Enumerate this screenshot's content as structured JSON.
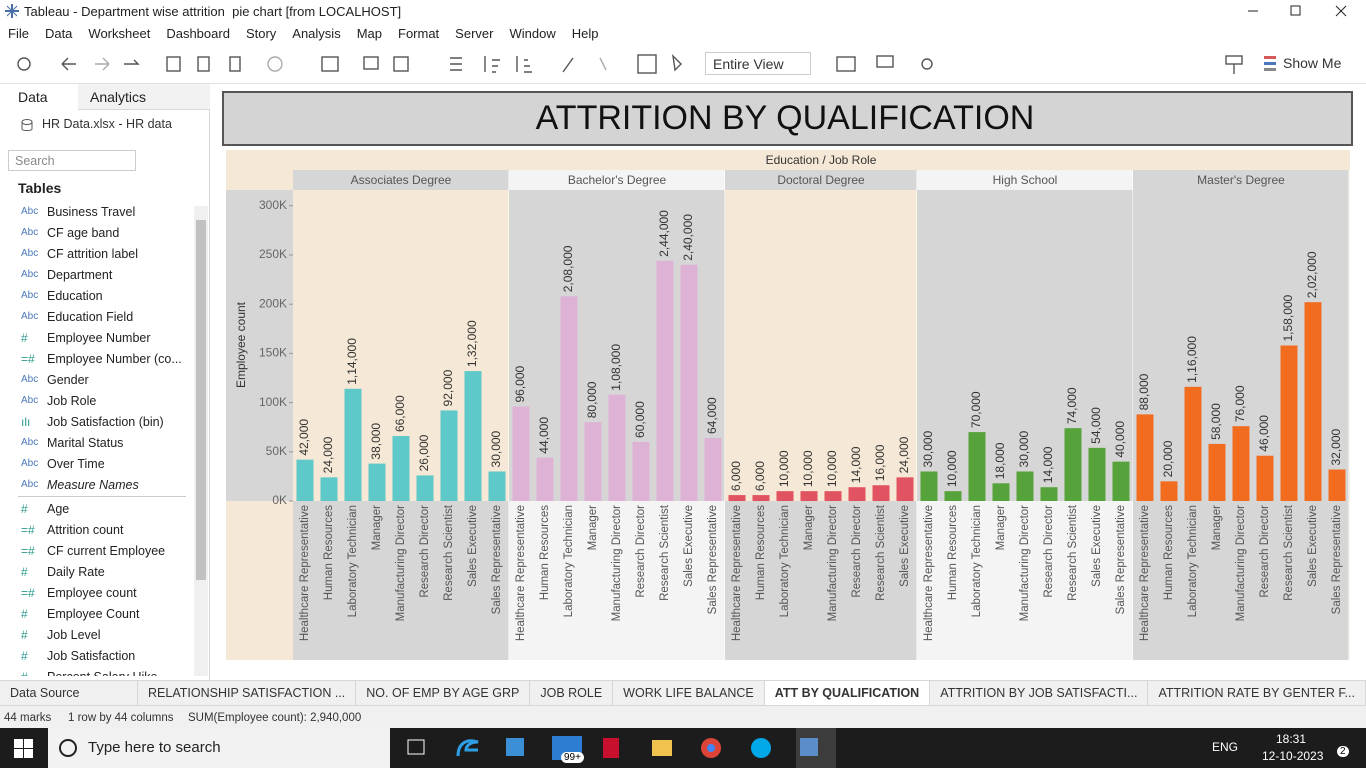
{
  "window": {
    "title": "Tableau - Department wise attrition  pie chart [from LOCALHOST]"
  },
  "menu": [
    "File",
    "Data",
    "Worksheet",
    "Dashboard",
    "Story",
    "Analysis",
    "Map",
    "Format",
    "Server",
    "Window",
    "Help"
  ],
  "toolbar": {
    "view": "Entire View",
    "show_me": "Show Me"
  },
  "side_panel": {
    "tabs": [
      "Data",
      "Analytics"
    ],
    "source": "HR Data.xlsx - HR data",
    "search": "Search",
    "tables": "Tables",
    "dimensions": [
      {
        "icon": "Abc",
        "name": "Business Travel"
      },
      {
        "icon": "Abc",
        "name": "CF age band"
      },
      {
        "icon": "Abc",
        "name": "CF attrition label"
      },
      {
        "icon": "Abc",
        "name": "Department"
      },
      {
        "icon": "Abc",
        "name": "Education"
      },
      {
        "icon": "Abc",
        "name": "Education Field"
      },
      {
        "icon": "#",
        "name": "Employee Number"
      },
      {
        "icon": "=#",
        "name": "Employee Number (co..."
      },
      {
        "icon": "Abc",
        "name": "Gender"
      },
      {
        "icon": "Abc",
        "name": "Job Role"
      },
      {
        "icon": "ılı",
        "name": "Job Satisfaction (bin)"
      },
      {
        "icon": "Abc",
        "name": "Marital Status"
      },
      {
        "icon": "Abc",
        "name": "Over Time"
      },
      {
        "icon": "Abc",
        "name": "Measure Names",
        "italic": true
      }
    ],
    "measures": [
      {
        "icon": "#",
        "name": "Age"
      },
      {
        "icon": "=#",
        "name": "Attrition count"
      },
      {
        "icon": "=#",
        "name": "CF current Employee"
      },
      {
        "icon": "#",
        "name": "Daily Rate"
      },
      {
        "icon": "=#",
        "name": "Employee count"
      },
      {
        "icon": "#",
        "name": "Employee Count"
      },
      {
        "icon": "#",
        "name": "Job Level"
      },
      {
        "icon": "#",
        "name": "Job Satisfaction"
      },
      {
        "icon": "#",
        "name": "Percent Salary Hike"
      }
    ]
  },
  "sheet_tabs": {
    "data_source": "Data Source",
    "tabs": [
      "RELATIONSHIP SATISFACTION ...",
      "NO. OF EMP BY AGE GRP",
      "JOB ROLE",
      "WORK LIFE BALANCE",
      "ATT BY QUALIFICATION",
      "ATTRITION BY JOB SATISFACTI...",
      "ATTRITION  RATE BY GENTER F..."
    ],
    "active": 4
  },
  "status": [
    "44 marks",
    "1 row by 44 columns",
    "SUM(Employee count): 2,940,000"
  ],
  "taskbar": {
    "search": "Type here to search",
    "badge": "99+",
    "language": "ENG",
    "time": "18:31",
    "date": "12-10-2023",
    "notifications": "2"
  },
  "chart_data": {
    "type": "bar",
    "title": "ATTRITION BY QUALIFICATION",
    "header": "Education / Job Role",
    "y_label": "Employee count",
    "ylim": [
      0,
      316000
    ],
    "yticks": [
      {
        "value": 0,
        "label": "0K"
      },
      {
        "value": 50000,
        "label": "50K"
      },
      {
        "value": 100000,
        "label": "100K"
      },
      {
        "value": 150000,
        "label": "150K"
      },
      {
        "value": 200000,
        "label": "200K"
      },
      {
        "value": 250000,
        "label": "250K"
      },
      {
        "value": 300000,
        "label": "300K"
      }
    ],
    "groups": [
      {
        "name": "Associates Degree",
        "color": "#5fc9c9",
        "background": "#f5e8d6",
        "categories": [
          "Healthcare Representative",
          "Human Resources",
          "Laboratory Technician",
          "Manager",
          "Manufacturing Director",
          "Research Director",
          "Research Scientist",
          "Sales Executive",
          "Sales Representative"
        ],
        "values": [
          42000,
          24000,
          114000,
          38000,
          66000,
          26000,
          92000,
          132000,
          30000
        ],
        "value_labels": [
          "42,000",
          "24,000",
          "1,14,000",
          "38,000",
          "66,000",
          "26,000",
          "92,000",
          "1,32,000",
          "30,000"
        ]
      },
      {
        "name": "Bachelor's Degree",
        "color": "#ddb2d5",
        "background": "#d6d6d6",
        "categories": [
          "Healthcare Representative",
          "Human Resources",
          "Laboratory Technician",
          "Manager",
          "Manufacturing Director",
          "Research Director",
          "Research Scientist",
          "Sales Executive",
          "Sales Representative"
        ],
        "values": [
          96000,
          44000,
          208000,
          80000,
          108000,
          60000,
          244000,
          240000,
          64000
        ],
        "value_labels": [
          "96,000",
          "44,000",
          "2,08,000",
          "80,000",
          "1,08,000",
          "60,000",
          "2,44,000",
          "2,40,000",
          "64,000"
        ]
      },
      {
        "name": "Doctoral Degree",
        "color": "#e15360",
        "background": "#f5e8d6",
        "categories": [
          "Healthcare Representative",
          "Human Resources",
          "Laboratory Technician",
          "Manager",
          "Manufacturing Director",
          "Research Director",
          "Research Scientist",
          "Sales Executive"
        ],
        "values": [
          6000,
          6000,
          10000,
          10000,
          10000,
          14000,
          16000,
          24000
        ],
        "value_labels": [
          "6,000",
          "6,000",
          "10,000",
          "10,000",
          "10,000",
          "14,000",
          "16,000",
          "24,000"
        ]
      },
      {
        "name": "High School",
        "color": "#57a33b",
        "background": "#d6d6d6",
        "categories": [
          "Healthcare Representative",
          "Human Resources",
          "Laboratory Technician",
          "Manager",
          "Manufacturing Director",
          "Research Director",
          "Research Scientist",
          "Sales Executive",
          "Sales Representative"
        ],
        "values": [
          30000,
          10000,
          70000,
          18000,
          30000,
          14000,
          74000,
          54000,
          40000
        ],
        "value_labels": [
          "30,000",
          "10,000",
          "70,000",
          "18,000",
          "30,000",
          "14,000",
          "74,000",
          "54,000",
          "40,000"
        ]
      },
      {
        "name": "Master's Degree",
        "color": "#f26c20",
        "background": "#d6d6d6",
        "categories": [
          "Healthcare Representative",
          "Human Resources",
          "Laboratory Technician",
          "Manager",
          "Manufacturing Director",
          "Research Director",
          "Research Scientist",
          "Sales Executive",
          "Sales Representative"
        ],
        "values": [
          88000,
          20000,
          116000,
          58000,
          76000,
          46000,
          158000,
          202000,
          32000
        ],
        "value_labels": [
          "88,000",
          "20,000",
          "1,16,000",
          "58,000",
          "76,000",
          "46,000",
          "1,58,000",
          "2,02,000",
          "32,000"
        ]
      }
    ]
  }
}
